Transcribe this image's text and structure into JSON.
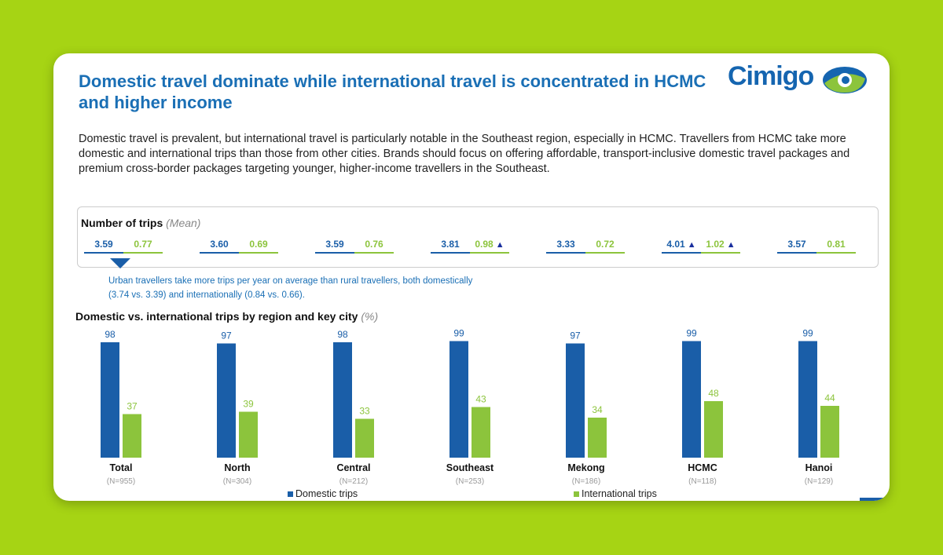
{
  "title": "Domestic travel dominate while international travel is concentrated in HCMC and higher income",
  "logo": {
    "text": "Cimigo"
  },
  "intro": "Domestic travel is prevalent, but international travel is particularly notable in the Southeast region, especially in HCMC. Travellers from HCMC take more domestic and international trips than those from other cities. Brands should focus on offering affordable, transport-inclusive domestic travel packages and premium cross-border packages targeting younger, higher-income travellers in the Southeast.",
  "means": {
    "title": "Number of trips",
    "qualifier": "(Mean)",
    "pairs": [
      {
        "domestic": "3.59",
        "international": "0.77",
        "d_up": false,
        "i_up": false
      },
      {
        "domestic": "3.60",
        "international": "0.69",
        "d_up": false,
        "i_up": false
      },
      {
        "domestic": "3.59",
        "international": "0.76",
        "d_up": false,
        "i_up": false
      },
      {
        "domestic": "3.81",
        "international": "0.98",
        "d_up": false,
        "i_up": true
      },
      {
        "domestic": "3.33",
        "international": "0.72",
        "d_up": false,
        "i_up": false
      },
      {
        "domestic": "4.01",
        "international": "1.02",
        "d_up": true,
        "i_up": true
      },
      {
        "domestic": "3.57",
        "international": "0.81",
        "d_up": false,
        "i_up": false
      }
    ],
    "up_arrow": "🡑"
  },
  "note": "Urban travellers take more trips per year on average than rural travellers, both domestically (3.74 vs. 3.39) and internationally (0.84 vs. 0.66).",
  "colors": {
    "domestic": "#1a5ea8",
    "international": "#8cc43c",
    "accent": "#1a6fb5"
  },
  "chart_data": {
    "type": "bar",
    "title": "Domestic vs. international trips by region and key city",
    "unit": "(%)",
    "categories": [
      "Total",
      "North",
      "Central",
      "Southeast",
      "Mekong",
      "HCMC",
      "Hanoi"
    ],
    "sample_sizes": [
      "(N=955)",
      "(N=304)",
      "(N=212)",
      "(N=253)",
      "(N=186)",
      "(N=118)",
      "(N=129)"
    ],
    "series": [
      {
        "name": "Domestic trips",
        "values": [
          98,
          97,
          98,
          99,
          97,
          99,
          99
        ]
      },
      {
        "name": "International trips",
        "values": [
          37,
          39,
          33,
          43,
          34,
          48,
          44
        ]
      }
    ],
    "ylim": [
      0,
      100
    ]
  }
}
